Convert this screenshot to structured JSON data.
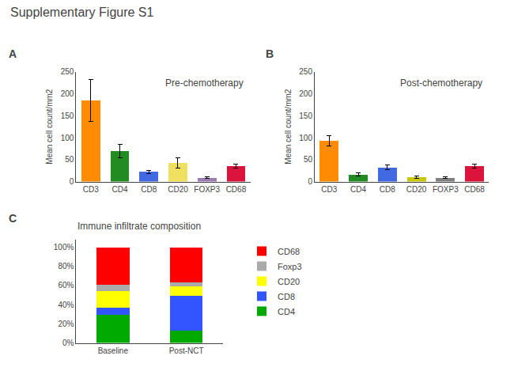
{
  "title": "Supplementary Figure S1",
  "chart_data": [
    {
      "type": "bar",
      "title": "Pre-chemotherapy",
      "annotations": [
        "A"
      ],
      "ylabel": "Mean cell count/mm2",
      "categories": [
        "CD3",
        "CD4",
        "CD8",
        "CD20",
        "FOXP3",
        "CD68"
      ],
      "values": [
        185,
        70,
        22,
        43,
        9,
        35
      ],
      "errors": [
        48,
        15,
        4,
        12,
        2,
        5
      ],
      "colors": [
        "#FF8C00",
        "#228B22",
        "#4169E1",
        "#F0E060",
        "#9B7BB0",
        "#DC143C"
      ],
      "ylim": [
        0,
        250
      ],
      "yticks": [
        0,
        50,
        100,
        150,
        200,
        250
      ],
      "grid": false
    },
    {
      "type": "bar",
      "title": "Post-chemotherapy",
      "annotations": [
        "B"
      ],
      "ylabel": "Mean cell count/mm2",
      "categories": [
        "CD3",
        "CD4",
        "CD8",
        "CD20",
        "FOXP3",
        "CD68"
      ],
      "values": [
        93,
        16,
        32,
        10,
        9,
        35
      ],
      "errors": [
        12,
        3,
        5,
        2,
        2,
        4
      ],
      "colors": [
        "#FF8C00",
        "#228B22",
        "#4169E1",
        "#C8C800",
        "#808080",
        "#DC143C"
      ],
      "ylim": [
        0,
        250
      ],
      "yticks": [
        0,
        50,
        100,
        150,
        200,
        250
      ],
      "grid": false
    },
    {
      "type": "bar",
      "stacked": true,
      "title": "Immune infiltrate composition",
      "annotations": [
        "C"
      ],
      "categories": [
        "Baseline",
        "Post-NCT"
      ],
      "series": [
        {
          "name": "CD4",
          "color": "#00AA00",
          "values": [
            0.29,
            0.13
          ]
        },
        {
          "name": "CD8",
          "color": "#3355FF",
          "values": [
            0.08,
            0.36
          ]
        },
        {
          "name": "CD20",
          "color": "#FFFF00",
          "values": [
            0.17,
            0.1
          ]
        },
        {
          "name": "Foxp3",
          "color": "#AAAAAA",
          "values": [
            0.07,
            0.04
          ]
        },
        {
          "name": "CD68",
          "color": "#FF0000",
          "values": [
            0.39,
            0.37
          ]
        }
      ],
      "ylim": [
        0,
        1.08
      ],
      "yticks": [
        {
          "value": 0,
          "label": "0%"
        },
        {
          "value": 0.2,
          "label": "20%"
        },
        {
          "value": 0.4,
          "label": "40%"
        },
        {
          "value": 0.6,
          "label": "60%"
        },
        {
          "value": 0.8,
          "label": "80%"
        },
        {
          "value": 1.0,
          "label": "100%"
        }
      ],
      "legend": "right",
      "grid": false
    }
  ]
}
